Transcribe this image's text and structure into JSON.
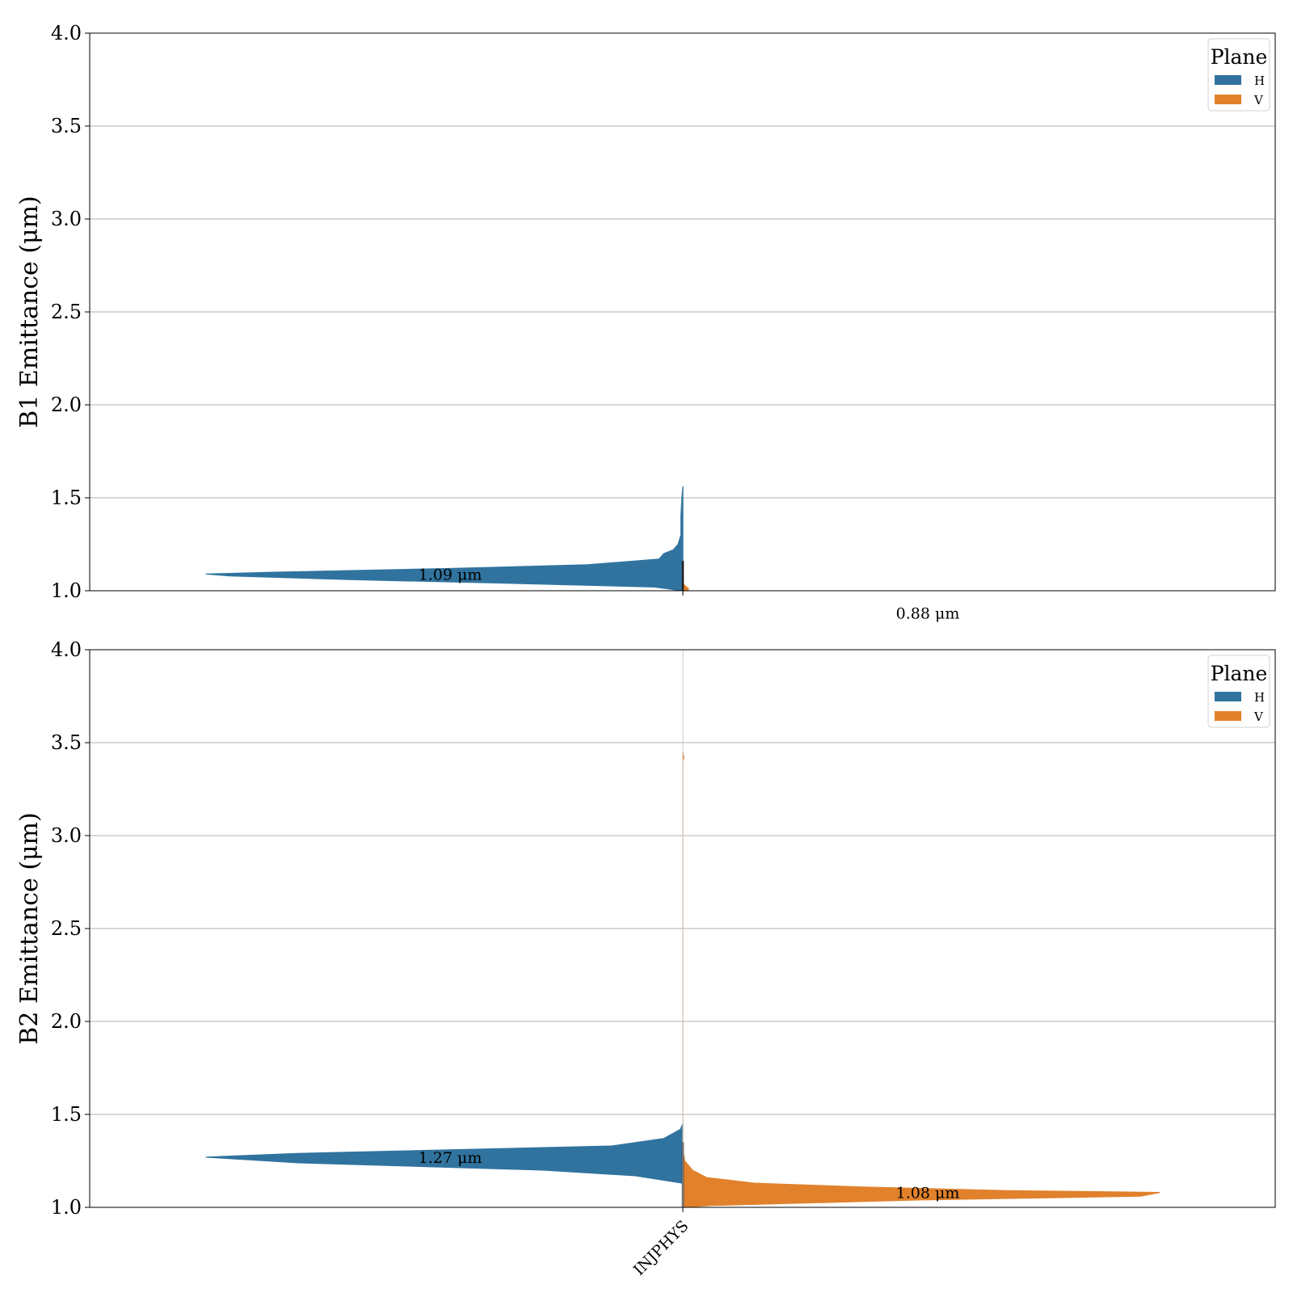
{
  "chart_data": [
    {
      "type": "violin",
      "ylabel": "B1 Emittance (μm)",
      "ylim": [
        1.0,
        4.0
      ],
      "yticks": [
        "1.0",
        "1.5",
        "2.0",
        "2.5",
        "3.0",
        "3.5",
        "4.0"
      ],
      "grid": "horizontal",
      "categories": [],
      "legend": {
        "title": "Plane",
        "placement": "top-right"
      },
      "series": [
        {
          "name": "H",
          "color": "#31739f",
          "side": "left",
          "annotation": "1.09 μm",
          "annotation_value": 1.09,
          "profile": [
            {
              "y": 1.0,
              "d": 0.0
            },
            {
              "y": 1.02,
              "d": 0.06
            },
            {
              "y": 1.04,
              "d": 0.36
            },
            {
              "y": 1.06,
              "d": 0.7
            },
            {
              "y": 1.08,
              "d": 0.95
            },
            {
              "y": 1.09,
              "d": 1.0
            },
            {
              "y": 1.1,
              "d": 0.85
            },
            {
              "y": 1.12,
              "d": 0.48
            },
            {
              "y": 1.14,
              "d": 0.2
            },
            {
              "y": 1.17,
              "d": 0.05
            },
            {
              "y": 1.2,
              "d": 0.04
            },
            {
              "y": 1.22,
              "d": 0.02
            },
            {
              "y": 1.25,
              "d": 0.01
            },
            {
              "y": 1.3,
              "d": 0.004
            },
            {
              "y": 1.4,
              "d": 0.004
            },
            {
              "y": 1.5,
              "d": 0.002
            },
            {
              "y": 1.56,
              "d": 0.0
            }
          ]
        },
        {
          "name": "V",
          "color": "#e1812c",
          "side": "right",
          "annotation": "0.88 μm",
          "annotation_value": 0.88,
          "profile": [
            {
              "y": 1.0,
              "d": 0.01
            },
            {
              "y": 1.01,
              "d": 0.012
            },
            {
              "y": 1.02,
              "d": 0.008
            },
            {
              "y": 1.03,
              "d": 0.003
            },
            {
              "y": 1.04,
              "d": 0.0
            }
          ]
        }
      ]
    },
    {
      "type": "violin",
      "ylabel": "B2 Emittance (μm)",
      "ylim": [
        1.0,
        4.0
      ],
      "yticks": [
        "1.0",
        "1.5",
        "2.0",
        "2.5",
        "3.0",
        "3.5",
        "4.0"
      ],
      "grid": "horizontal",
      "categories": [
        "INJPHYS"
      ],
      "legend": {
        "title": "Plane",
        "placement": "top-right"
      },
      "series": [
        {
          "name": "H",
          "color": "#31739f",
          "side": "left",
          "annotation": "1.27 μm",
          "annotation_value": 1.27,
          "profile": [
            {
              "y": 1.13,
              "d": 0.0
            },
            {
              "y": 1.17,
              "d": 0.1
            },
            {
              "y": 1.2,
              "d": 0.29
            },
            {
              "y": 1.24,
              "d": 0.81
            },
            {
              "y": 1.27,
              "d": 1.0
            },
            {
              "y": 1.29,
              "d": 0.81
            },
            {
              "y": 1.33,
              "d": 0.15
            },
            {
              "y": 1.37,
              "d": 0.04
            },
            {
              "y": 1.42,
              "d": 0.005
            },
            {
              "y": 1.45,
              "d": 0.0
            }
          ]
        },
        {
          "name": "V",
          "color": "#e1812c",
          "side": "right",
          "annotation": "1.08 μm",
          "annotation_value": 1.08,
          "profile": [
            {
              "y": 1.0,
              "d": 0.0
            },
            {
              "y": 1.01,
              "d": 0.06
            },
            {
              "y": 1.04,
              "d": 0.5
            },
            {
              "y": 1.06,
              "d": 0.96
            },
            {
              "y": 1.08,
              "d": 1.0
            },
            {
              "y": 1.09,
              "d": 0.68
            },
            {
              "y": 1.11,
              "d": 0.37
            },
            {
              "y": 1.13,
              "d": 0.15
            },
            {
              "y": 1.16,
              "d": 0.05
            },
            {
              "y": 1.2,
              "d": 0.02
            },
            {
              "y": 1.25,
              "d": 0.004
            },
            {
              "y": 1.3,
              "d": 0.0
            },
            {
              "y": 3.4,
              "d": 0.0
            },
            {
              "y": 3.42,
              "d": 0.002
            },
            {
              "y": 3.45,
              "d": 0.0
            }
          ]
        }
      ]
    }
  ]
}
